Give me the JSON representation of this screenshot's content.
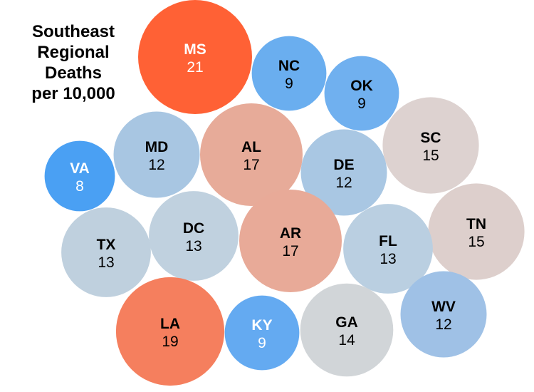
{
  "chart_data": {
    "type": "bubble",
    "title_lines": [
      "Southeast",
      "Regional",
      "Deaths",
      "per 10,000"
    ],
    "value_range": [
      8,
      21
    ],
    "points": [
      {
        "label": "MS",
        "value": 21,
        "color": "#ff6135",
        "text_color": "#ffffff"
      },
      {
        "label": "NC",
        "value": 9,
        "color": "#6aaeef",
        "text_color": "#000000"
      },
      {
        "label": "OK",
        "value": 9,
        "color": "#70b0ef",
        "text_color": "#000000"
      },
      {
        "label": "SC",
        "value": 15,
        "color": "#ddd2d0",
        "text_color": "#000000"
      },
      {
        "label": "MD",
        "value": 12,
        "color": "#a8c6e2",
        "text_color": "#000000"
      },
      {
        "label": "AL",
        "value": 17,
        "color": "#e7ab99",
        "text_color": "#000000"
      },
      {
        "label": "DE",
        "value": 12,
        "color": "#a9c7e3",
        "text_color": "#000000"
      },
      {
        "label": "VA",
        "value": 8,
        "color": "#4aa0f3",
        "text_color": "#ffffff"
      },
      {
        "label": "TN",
        "value": 15,
        "color": "#ddcfcc",
        "text_color": "#000000"
      },
      {
        "label": "TX",
        "value": 13,
        "color": "#bfd0de",
        "text_color": "#000000"
      },
      {
        "label": "DC",
        "value": 13,
        "color": "#c0d1df",
        "text_color": "#000000"
      },
      {
        "label": "AR",
        "value": 17,
        "color": "#e8aa98",
        "text_color": "#000000"
      },
      {
        "label": "FL",
        "value": 13,
        "color": "#bacfe1",
        "text_color": "#000000"
      },
      {
        "label": "LA",
        "value": 19,
        "color": "#f57f5e",
        "text_color": "#000000"
      },
      {
        "label": "KY",
        "value": 9,
        "color": "#64aaf1",
        "text_color": "#ffffff"
      },
      {
        "label": "GA",
        "value": 14,
        "color": "#d1d5d8",
        "text_color": "#000000"
      },
      {
        "label": "WV",
        "value": 12,
        "color": "#9fc1e6",
        "text_color": "#000000"
      }
    ]
  }
}
